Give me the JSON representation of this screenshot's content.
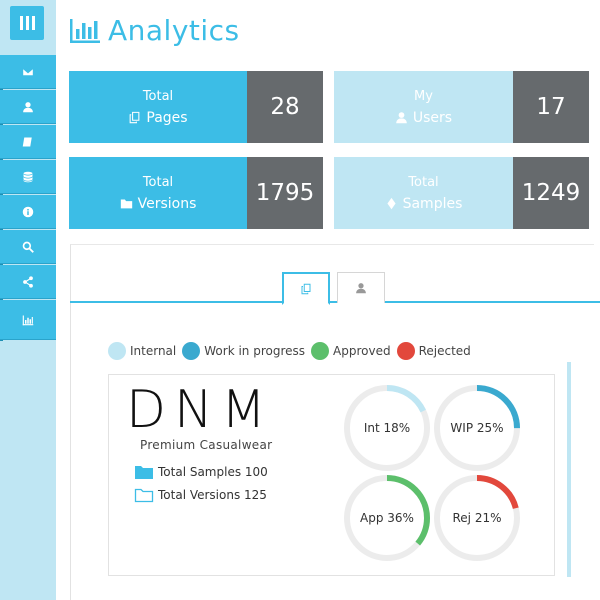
{
  "header": {
    "title": "Analytics",
    "icon": "bar-chart-icon"
  },
  "sidebar": {
    "toggle_icon": "menu-icon",
    "items": [
      {
        "icon": "envelope-icon"
      },
      {
        "icon": "user-icon"
      },
      {
        "icon": "book-icon"
      },
      {
        "icon": "database-icon"
      },
      {
        "icon": "info-icon"
      },
      {
        "icon": "search-icon"
      },
      {
        "icon": "share-icon"
      },
      {
        "icon": "bar-chart-icon"
      }
    ]
  },
  "cards": [
    {
      "line1": "Total",
      "line2": "Pages",
      "value": "28",
      "icon": "copy-icon",
      "color": "#3cbde6"
    },
    {
      "line1": "My",
      "line2": "Users",
      "value": "17",
      "icon": "user-icon",
      "color": "#bfe6f3"
    },
    {
      "line1": "Total",
      "line2": "Versions",
      "value": "1795",
      "icon": "folder-icon",
      "color": "#3cbde6"
    },
    {
      "line1": "Total",
      "line2": "Samples",
      "value": "1249",
      "icon": "diamond-icon",
      "color": "#bfe6f3"
    }
  ],
  "tabs": [
    {
      "icon": "copy-icon",
      "active": true
    },
    {
      "icon": "user-icon",
      "active": false
    }
  ],
  "legend": [
    {
      "label": "Internal",
      "color": "#bfe6f3"
    },
    {
      "label": "Work in progress",
      "color": "#3aa9cf"
    },
    {
      "label": "Approved",
      "color": "#5cbf6b"
    },
    {
      "label": "Rejected",
      "color": "#e2483c"
    }
  ],
  "brand": {
    "name": "DNM",
    "subtitle": "Premium Casualwear",
    "stats": [
      {
        "label": "Total Samples 100",
        "icon": "folder-filled-icon"
      },
      {
        "label": "Total Versions 125",
        "icon": "folder-outline-icon"
      }
    ]
  },
  "donuts": [
    {
      "label": "Int 18%",
      "percent": 18,
      "color": "#bfe6f3"
    },
    {
      "label": "WIP 25%",
      "percent": 25,
      "color": "#3aa9cf"
    },
    {
      "label": "App 36%",
      "percent": 36,
      "color": "#5cbf6b"
    },
    {
      "label": "Rej 21%",
      "percent": 21,
      "color": "#e2483c"
    }
  ]
}
